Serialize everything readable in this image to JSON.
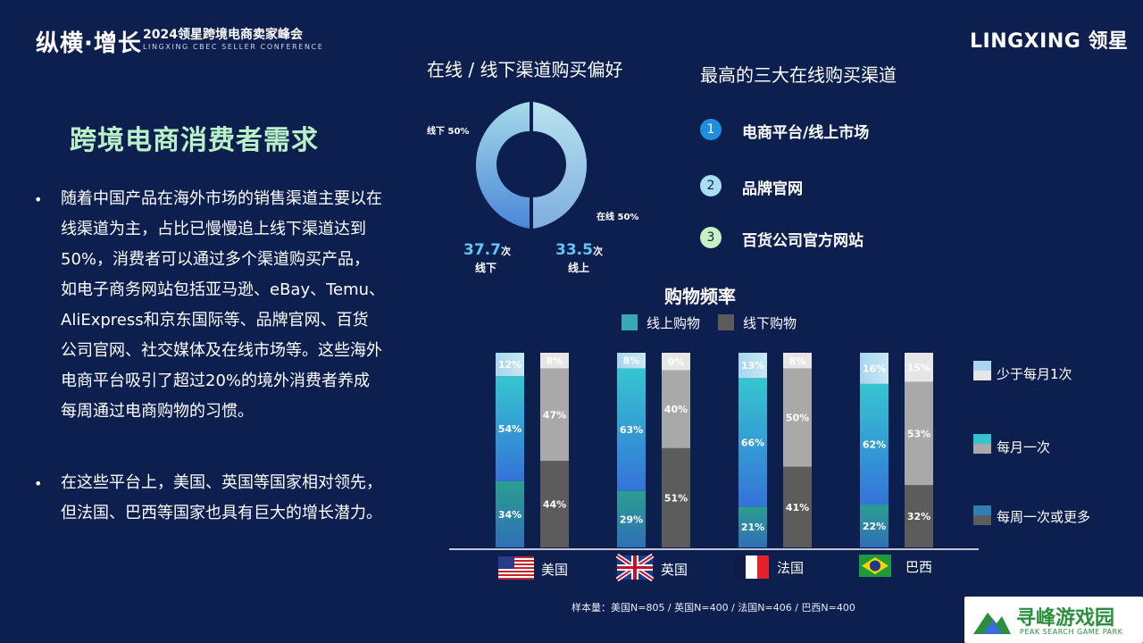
{
  "header": {
    "logo_cn": "纵横·增长",
    "event_title": "2024领星跨境电商卖家峰会",
    "event_subtitle": "LINGXING CBEC SELLER CONFERENCE",
    "brand": "LINGXING 领星"
  },
  "left": {
    "title": "跨境电商消费者需求",
    "bullet1_lines": [
      "随着中国产品在海外市场的销售渠道主要以在",
      "线渠道为主，占比已慢慢追上线下渠道达到",
      "50%，消费者可以通过多个渠道购买产品，",
      "如电子商务网站包括亚马逊、eBay、Temu、",
      "AliExpress和京东国际等、品牌官网、百货",
      "公司官网、社交媒体及在线市场等。这些海外",
      "电商平台吸引了超过20%的境外消费者养成",
      "每周通过电商购物的习惯。"
    ],
    "bullet2_lines": [
      "在这些平台上，美国、英国等国家相对领先，",
      "但法国、巴西等国家也具有巨大的增长潜力。"
    ]
  },
  "preference": {
    "title": "在线 / 线下渠道购买偏好",
    "offline_label": "线下 50%",
    "online_label": "在线 50%",
    "offline_count": "37.7",
    "online_count": "33.5",
    "count_unit": "次",
    "offline_caption": "线下",
    "online_caption": "线上"
  },
  "channels": {
    "title": "最高的三大在线购买渠道",
    "items": [
      {
        "num": "1",
        "label": "电商平台/线上市场",
        "color": "#1e8fe0",
        "text_color": "#ffffff"
      },
      {
        "num": "2",
        "label": "品牌官网",
        "color": "#a8def0",
        "text_color": "#0c1f4f"
      },
      {
        "num": "3",
        "label": "百货公司官方网站",
        "color": "#c8f0c0",
        "text_color": "#0c1f4f"
      }
    ]
  },
  "chart_data": {
    "type": "bar",
    "stacked": true,
    "title": "购物频率",
    "legend_top": [
      "线上购物",
      "线下购物"
    ],
    "segment_legend": [
      "少于每月1次",
      "每月一次",
      "每周一次或更多"
    ],
    "categories": [
      "美国",
      "英国",
      "法国",
      "巴西"
    ],
    "online": {
      "weekly_or_more": [
        34,
        29,
        21,
        22
      ],
      "monthly": [
        54,
        63,
        66,
        62
      ],
      "less_than_monthly": [
        12,
        8,
        13,
        16
      ]
    },
    "offline": {
      "weekly_or_more": [
        44,
        51,
        41,
        32
      ],
      "monthly": [
        47,
        40,
        50,
        53
      ],
      "less_than_monthly": [
        8,
        9,
        8,
        15
      ]
    },
    "ylim": [
      0,
      100
    ],
    "colors": {
      "online_top": "#a7d6ee",
      "online_mid_top": "#35c3cf",
      "online_mid_bottom": "#3478d8",
      "online_bottom": "#2a9a94",
      "offline_top": "#e6e6e6",
      "offline_mid": "#a9a9a9",
      "offline_bottom": "#5c5c5c"
    },
    "sample_note": "样本量：美国N=805 / 英国N=400 / 法国N=406 / 巴西N=400"
  },
  "watermark": {
    "cn": "寻峰游戏园",
    "en": "PEAK SEARCH GAME PARK"
  }
}
